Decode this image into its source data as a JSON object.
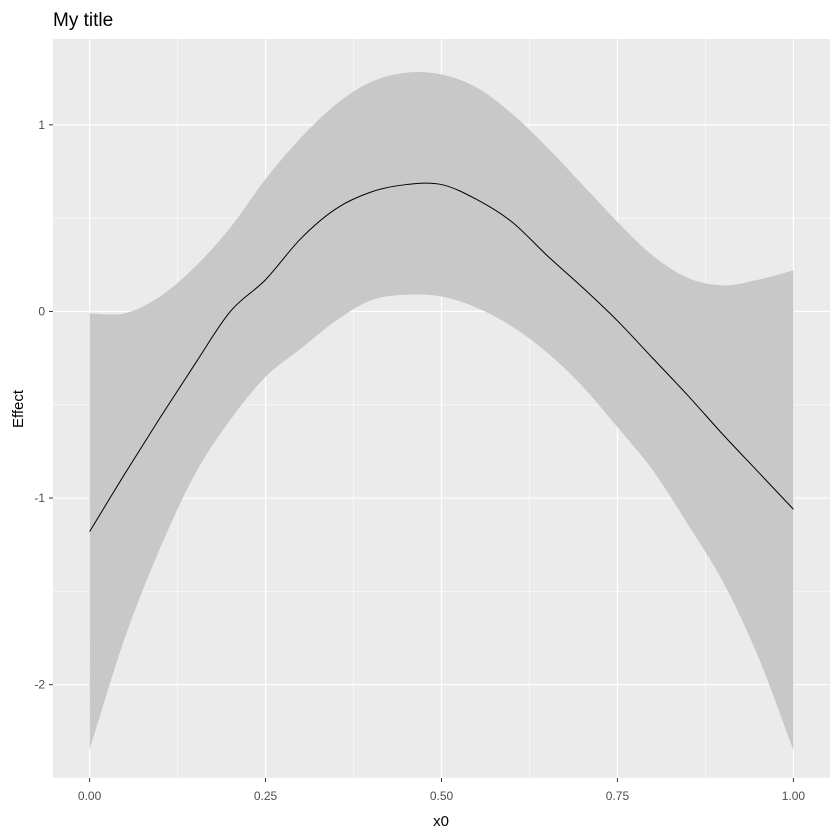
{
  "chart_data": {
    "type": "line",
    "title": "My title",
    "xlabel": "x0",
    "ylabel": "Effect",
    "xlim": [
      -0.052,
      1.052
    ],
    "ylim": [
      -2.5,
      1.46
    ],
    "grid": true,
    "x_ticks": [
      0.0,
      0.25,
      0.5,
      0.75,
      1.0
    ],
    "x_tick_labels": [
      "0.00",
      "0.25",
      "0.50",
      "0.75",
      "1.00"
    ],
    "x_minor_ticks": [
      0.125,
      0.375,
      0.625,
      0.875
    ],
    "y_ticks": [
      -2,
      -1,
      0,
      1
    ],
    "y_tick_labels": [
      "-2",
      "-1",
      "0",
      "1"
    ],
    "y_minor_ticks": [
      -2.5,
      -1.5,
      -0.5,
      0.5
    ],
    "colors": {
      "panel_background": "#ebebeb",
      "grid": "#ffffff",
      "ribbon": "#c8c8c8",
      "line": "#000000"
    },
    "series": [
      {
        "x": [
          0.0,
          0.05,
          0.1,
          0.15,
          0.2,
          0.25,
          0.3,
          0.35,
          0.4,
          0.45,
          0.5,
          0.55,
          0.6,
          0.65,
          0.7,
          0.75,
          0.8,
          0.85,
          0.9,
          0.95,
          1.0
        ],
        "y": [
          -1.18,
          -0.87,
          -0.57,
          -0.28,
          0.0,
          0.17,
          0.39,
          0.55,
          0.64,
          0.68,
          0.68,
          0.6,
          0.48,
          0.3,
          0.13,
          -0.05,
          -0.25,
          -0.45,
          -0.66,
          -0.86,
          -1.06
        ],
        "lower": [
          -2.35,
          -1.75,
          -1.27,
          -0.87,
          -0.58,
          -0.35,
          -0.2,
          -0.05,
          0.06,
          0.09,
          0.08,
          0.02,
          -0.08,
          -0.22,
          -0.4,
          -0.62,
          -0.85,
          -1.14,
          -1.45,
          -1.85,
          -2.35
        ],
        "upper": [
          -0.01,
          -0.01,
          0.08,
          0.24,
          0.45,
          0.71,
          0.93,
          1.11,
          1.23,
          1.28,
          1.27,
          1.2,
          1.06,
          0.88,
          0.68,
          0.48,
          0.3,
          0.18,
          0.14,
          0.17,
          0.22
        ]
      }
    ]
  }
}
